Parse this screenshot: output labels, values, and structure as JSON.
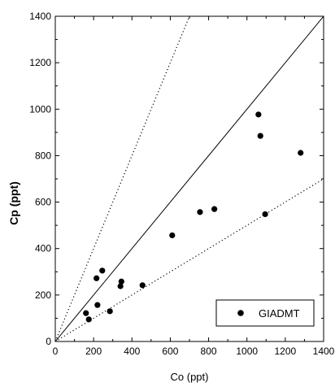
{
  "chart_data": {
    "type": "scatter",
    "xlabel": "Co (ppt)",
    "ylabel": "Cp (ppt)",
    "xlim": [
      0,
      1400
    ],
    "ylim": [
      0,
      1400
    ],
    "xticks": [
      0,
      200,
      400,
      600,
      800,
      1000,
      1200,
      1400
    ],
    "yticks": [
      0,
      200,
      400,
      600,
      800,
      1000,
      1200,
      1400
    ],
    "grid": false,
    "legend_position": "bottom-right",
    "series": [
      {
        "name": "GIADMT",
        "marker": "filled-circle",
        "color": "#000000",
        "points": [
          {
            "x": 160,
            "y": 122
          },
          {
            "x": 175,
            "y": 95
          },
          {
            "x": 215,
            "y": 272
          },
          {
            "x": 220,
            "y": 157
          },
          {
            "x": 245,
            "y": 305
          },
          {
            "x": 285,
            "y": 130
          },
          {
            "x": 340,
            "y": 238
          },
          {
            "x": 345,
            "y": 258
          },
          {
            "x": 455,
            "y": 242
          },
          {
            "x": 610,
            "y": 457
          },
          {
            "x": 755,
            "y": 557
          },
          {
            "x": 830,
            "y": 570
          },
          {
            "x": 1060,
            "y": 977
          },
          {
            "x": 1070,
            "y": 885
          },
          {
            "x": 1095,
            "y": 548
          },
          {
            "x": 1280,
            "y": 812
          }
        ]
      }
    ],
    "reference_lines": [
      {
        "style": "solid",
        "slope": 1.0
      },
      {
        "style": "dotted",
        "slope": 2.0
      },
      {
        "style": "dotted",
        "slope": 0.5
      }
    ]
  }
}
